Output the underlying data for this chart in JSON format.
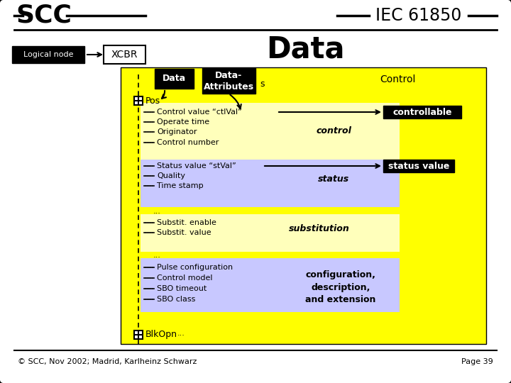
{
  "title": "Data",
  "scc_label": "SCC",
  "iec_label": "IEC 61850",
  "logical_node_label": "Logical node",
  "xcbr_label": "XCBR",
  "footer": "© SCC, Nov 2002; Madrid, Karlheinz Schwarz",
  "page": "Page 39",
  "bg_color": "#ffffff",
  "yellow": "#ffff00",
  "light_blue": "#c8c8ff",
  "light_yellow": "#ffffbb",
  "black": "#000000",
  "white": "#ffffff",
  "control_items": [
    "Control value “ctlVal”",
    "Operate time",
    "Originator",
    "Control number"
  ],
  "status_items": [
    "Status value “stVal”",
    "Quality",
    "Time stamp"
  ],
  "substitution_items": [
    "Substit. enable",
    "Substit. value"
  ],
  "config_items": [
    "Pulse configuration",
    "Control model",
    "SBO timeout",
    "SBO class"
  ]
}
